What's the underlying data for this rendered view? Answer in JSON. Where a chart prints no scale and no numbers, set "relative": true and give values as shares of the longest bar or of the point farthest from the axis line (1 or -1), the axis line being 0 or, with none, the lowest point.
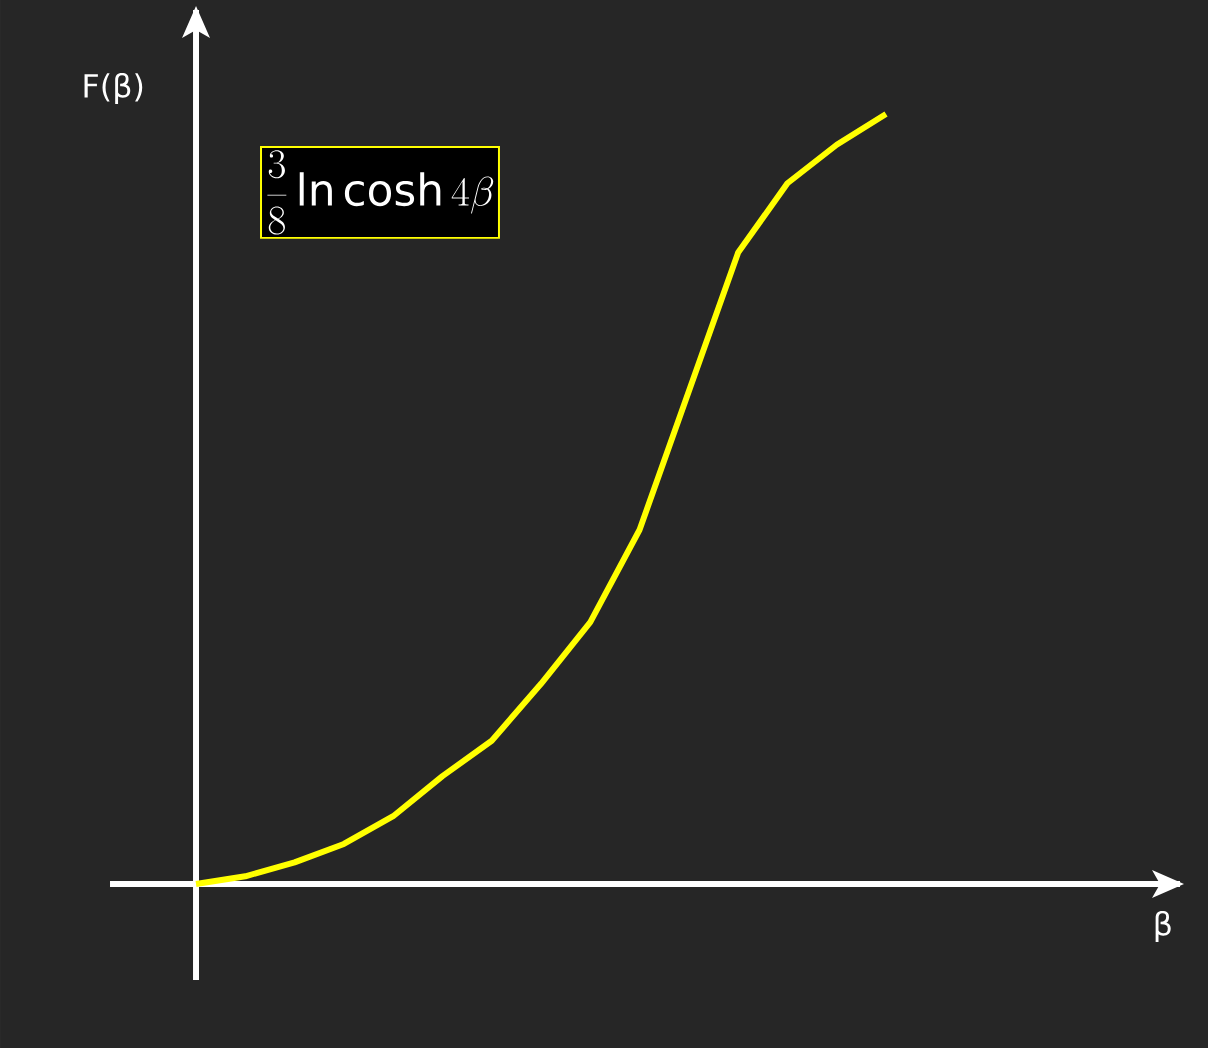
{
  "chart_data": {
    "type": "line",
    "relative": true,
    "ylabel": "F(β)",
    "annotations": [
      "\\frac{3}{8}\\ln\\cosh 4\\beta",
      "β"
    ],
    "categories": [
      null,
      null,
      null,
      null,
      null,
      null,
      null,
      null,
      null,
      null,
      null,
      null,
      null,
      null,
      null
    ],
    "series": [
      {
        "color": "#ffff00",
        "values": [
          0,
          0.01,
          0.028,
          0.052,
          0.088,
          0.14,
          0.186,
          0.26,
          0.34,
          0.46,
          0.64,
          0.82,
          0.91,
          0.96,
          1.0
        ]
      }
    ]
  }
}
